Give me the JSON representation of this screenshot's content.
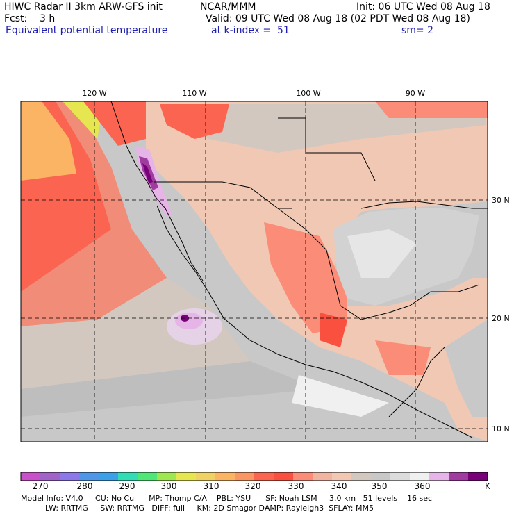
{
  "header": {
    "left_line1": "HIWC Radar II 3km ARW-GFS init",
    "center_line1": "NCAR/MMM",
    "right_line1": "Init: 06 UTC Wed 08 Aug 18",
    "left_line2": "Fcst:    3 h",
    "right_line2": "Valid: 09 UTC Wed 08 Aug 18 (02 PDT Wed 08 Aug 18)",
    "field_name": "Equivalent potential temperature",
    "level_text": "at k-index =  51",
    "smooth_text": "sm= 2"
  },
  "map": {
    "lon_labels": [
      "120 W",
      "110 W",
      "100 W",
      "90 W"
    ],
    "lat_labels": [
      "30 N",
      "20 N",
      "10 N"
    ]
  },
  "colorbar": {
    "unit": "K",
    "ticks": [
      "270",
      "280",
      "290",
      "300",
      "310",
      "320",
      "330",
      "340",
      "350",
      "360"
    ],
    "colors": [
      "#c850c8",
      "#a064c8",
      "#8c78e6",
      "#5096e6",
      "#3ca0e6",
      "#32dcb4",
      "#50e678",
      "#a0e650",
      "#e6e650",
      "#f0d264",
      "#fab464",
      "#fa9664",
      "#fa6450",
      "#fa5040",
      "#fa8c78",
      "#f0b4a0",
      "#f0c8b4",
      "#d2c8c0",
      "#c8c8c8",
      "#dcdcdc",
      "#f0f0f0",
      "#e6b4e6",
      "#a03ca0",
      "#780078"
    ]
  },
  "footer": {
    "line1": "Model Info: V4.0     CU: No Cu      MP: Thomp C/A    PBL: YSU      SF: Noah LSM     3.0 km   51 levels    16 sec",
    "line2": "          LW: RRTMG     SW: RRTMG   DIFF: full     KM: 2D Smagor DAMP: Rayleigh3  SFLAY: MM5"
  }
}
